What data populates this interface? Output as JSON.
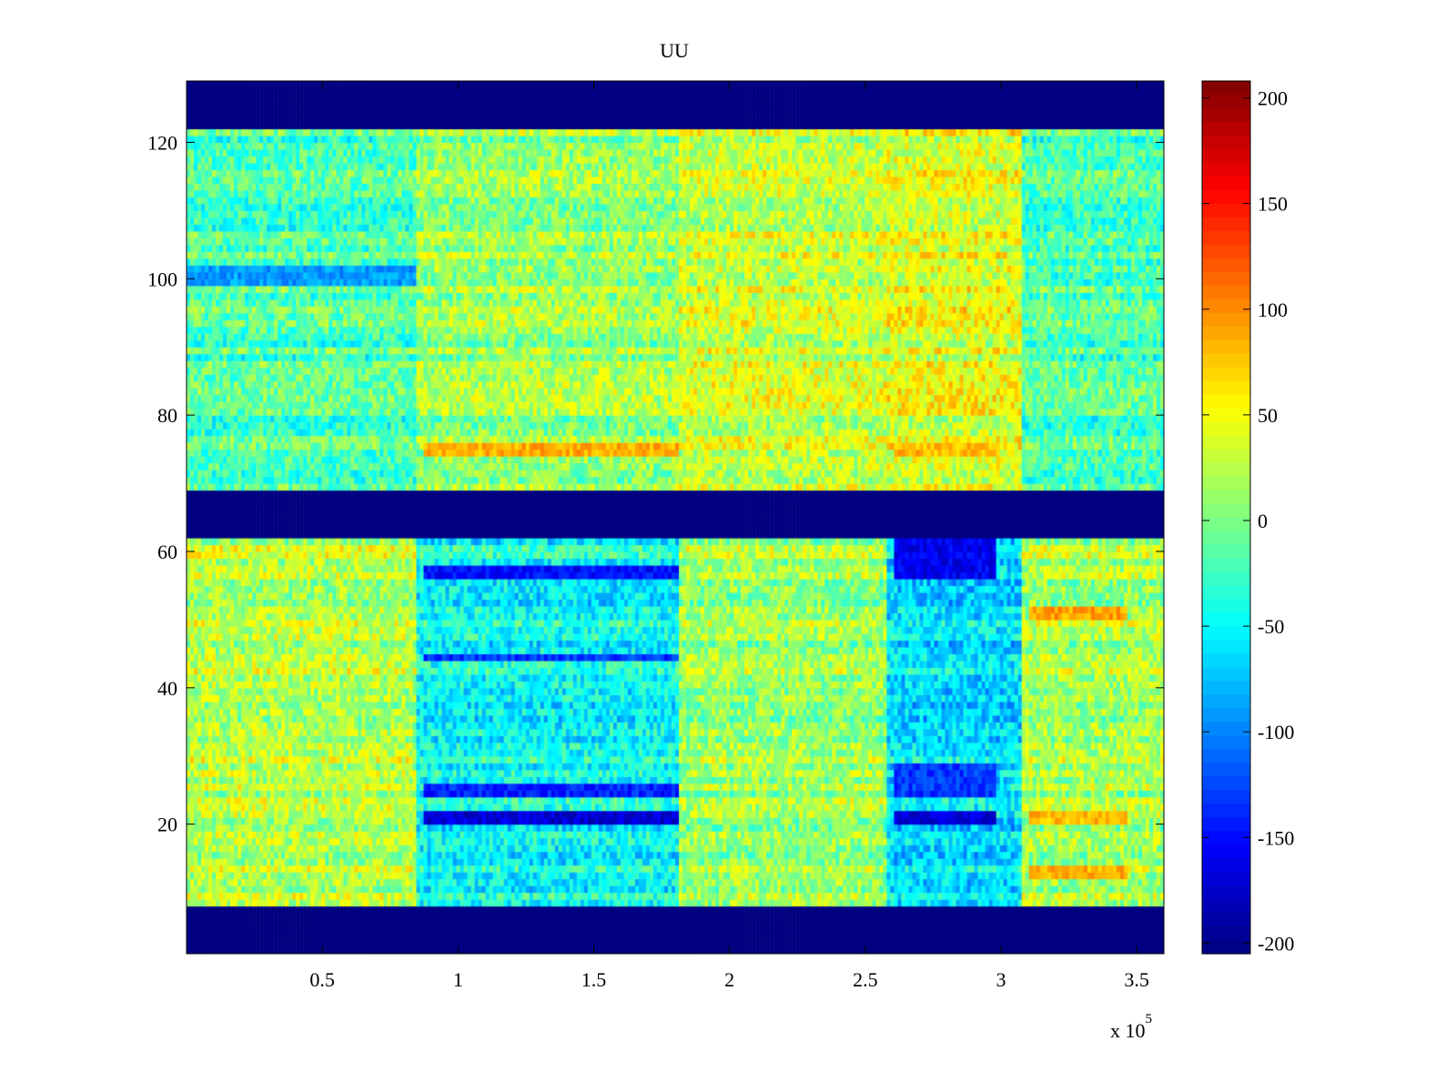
{
  "chart_data": {
    "type": "heatmap",
    "title": "UU",
    "xlabel": "",
    "ylabel": "",
    "x_multiplier_label": "x 10",
    "x_multiplier_exponent": "5",
    "xlim": [
      0,
      3.6
    ],
    "ylim": [
      1,
      129
    ],
    "x_ticks": [
      0.5,
      1,
      1.5,
      2,
      2.5,
      3,
      3.5
    ],
    "x_tick_labels": [
      "0.5",
      "1",
      "1.5",
      "2",
      "2.5",
      "3",
      "3.5"
    ],
    "y_ticks": [
      20,
      40,
      60,
      80,
      100,
      120
    ],
    "y_tick_labels": [
      "20",
      "40",
      "60",
      "80",
      "100",
      "120"
    ],
    "colorbar": {
      "colormap": "jet",
      "range": [
        -205,
        208
      ],
      "ticks": [
        200,
        150,
        100,
        50,
        0,
        -50,
        -100,
        -150,
        -200
      ],
      "tick_labels": [
        "200",
        "150",
        "100",
        "50",
        "0",
        "-50",
        "-100",
        "-150",
        "-200"
      ]
    },
    "fill_value": -205,
    "masked_row_bands": [
      [
        1,
        7
      ],
      [
        62,
        68
      ],
      [
        122,
        129
      ]
    ],
    "time_segments": [
      {
        "x": [
          0.0,
          0.85
        ],
        "upper_mean": -20,
        "lower_mean": 25
      },
      {
        "x": [
          0.85,
          1.81
        ],
        "upper_mean": 10,
        "lower_mean": -45
      },
      {
        "x": [
          1.81,
          2.58
        ],
        "upper_mean": 30,
        "lower_mean": 15
      },
      {
        "x": [
          2.58,
          3.08
        ],
        "upper_mean": 40,
        "lower_mean": -60
      },
      {
        "x": [
          3.08,
          3.6
        ],
        "upper_mean": -20,
        "lower_mean": 20
      }
    ],
    "notable_bands": [
      {
        "x": [
          0.87,
          1.81
        ],
        "rows": [
          74,
          75
        ],
        "value": 85
      },
      {
        "x": [
          0.87,
          1.81
        ],
        "rows": [
          56,
          57
        ],
        "value": -150
      },
      {
        "x": [
          0.87,
          1.81
        ],
        "rows": [
          20,
          21
        ],
        "value": -170
      },
      {
        "x": [
          0.87,
          1.81
        ],
        "rows": [
          24,
          25
        ],
        "value": -140
      },
      {
        "x": [
          0.87,
          1.81
        ],
        "rows": [
          44,
          44
        ],
        "value": -130
      },
      {
        "x": [
          2.6,
          2.98
        ],
        "rows": [
          56,
          61
        ],
        "value": -160
      },
      {
        "x": [
          2.6,
          2.98
        ],
        "rows": [
          20,
          21
        ],
        "value": -170
      },
      {
        "x": [
          2.6,
          2.98
        ],
        "rows": [
          24,
          28
        ],
        "value": -130
      },
      {
        "x": [
          2.6,
          2.98
        ],
        "rows": [
          74,
          75
        ],
        "value": 80
      },
      {
        "x": [
          0.0,
          0.85
        ],
        "rows": [
          99,
          101
        ],
        "value": -90
      },
      {
        "x": [
          3.1,
          3.47
        ],
        "rows": [
          50,
          51
        ],
        "value": 90
      },
      {
        "x": [
          3.1,
          3.47
        ],
        "rows": [
          12,
          13
        ],
        "value": 85
      },
      {
        "x": [
          3.1,
          3.47
        ],
        "rows": [
          20,
          21
        ],
        "value": 80
      }
    ],
    "grid": false
  }
}
